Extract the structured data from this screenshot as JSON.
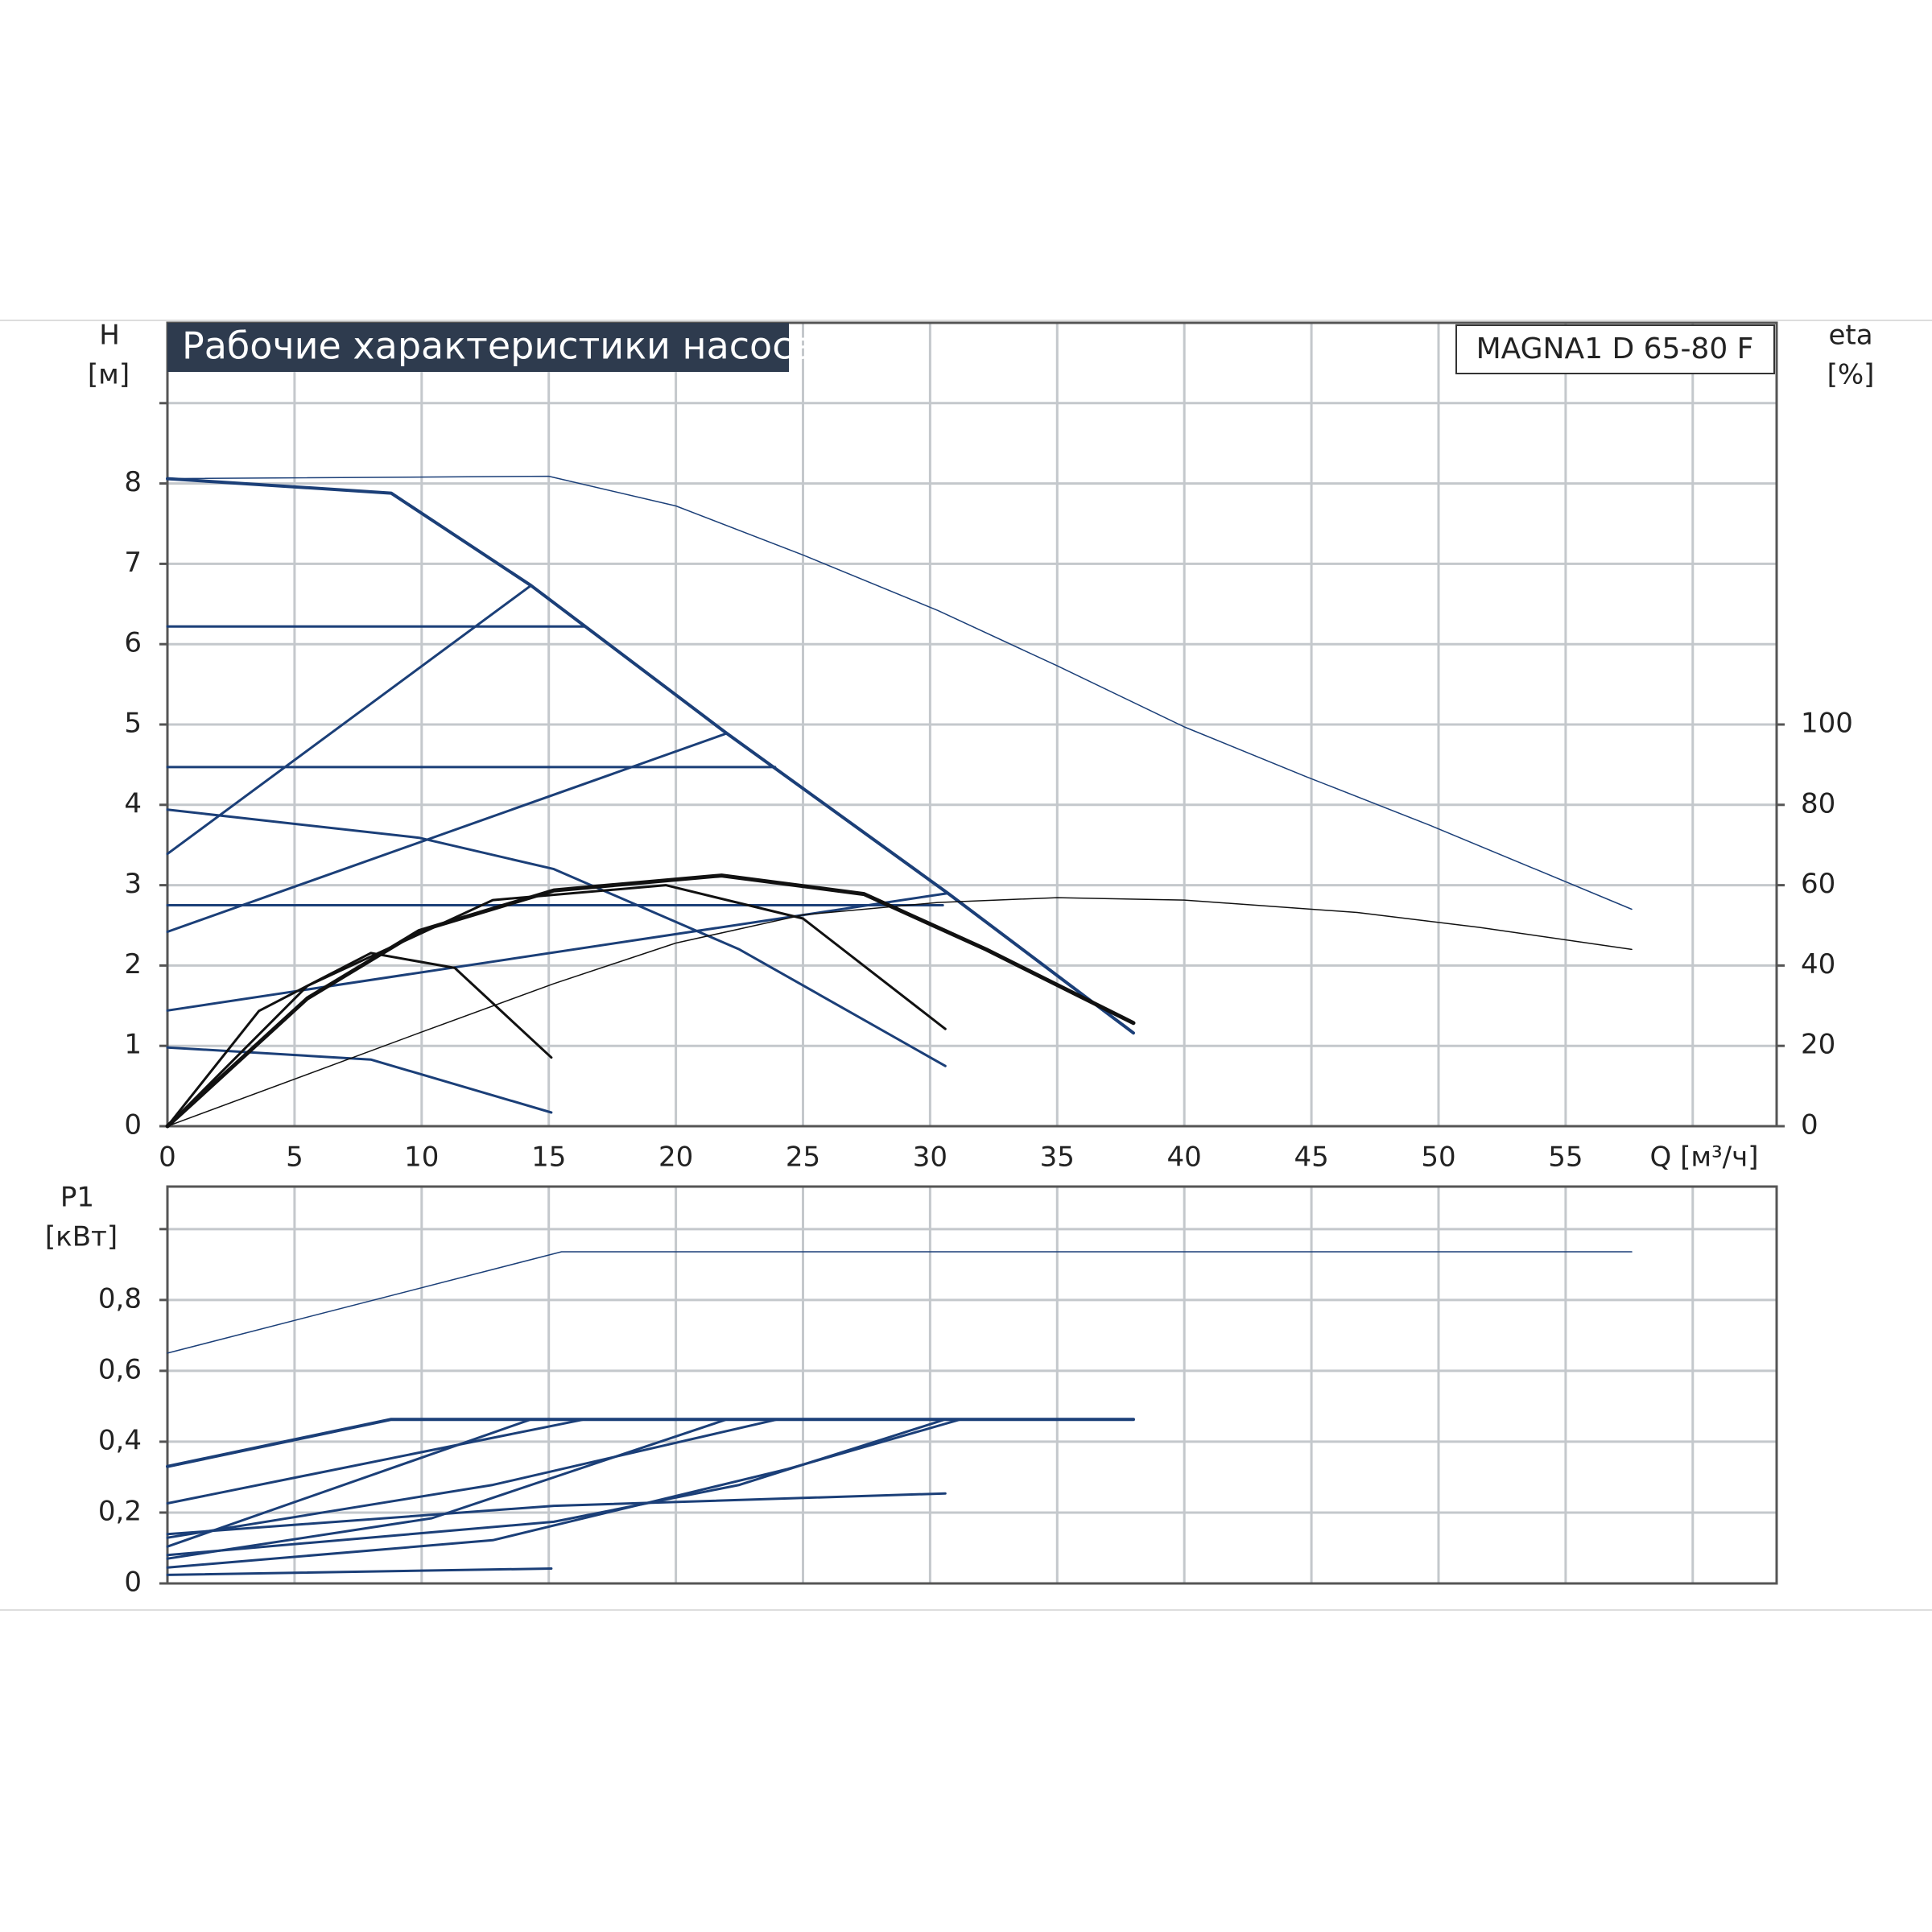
{
  "chart_data": [
    {
      "type": "line",
      "title": "Рабочие характеристики насоса",
      "model": "MAGNA1 D 65-80 F",
      "ylabel": "H",
      "yunit": "[м]",
      "y2label": "eta",
      "y2unit": "[%]",
      "xlabel": "Q [м³/ч]",
      "xlim": [
        0,
        63.3
      ],
      "xticks": [
        0,
        5,
        10,
        15,
        20,
        25,
        30,
        35,
        40,
        45,
        50,
        55,
        {
          "value": 60,
          "label": null
        }
      ],
      "ylim": [
        0,
        10
      ],
      "yticks": [
        0,
        1,
        2,
        3,
        4,
        5,
        6,
        7,
        8,
        {
          "value": 9,
          "label": null
        }
      ],
      "y2lim": [
        0,
        200
      ],
      "y2ticks": [
        0,
        20,
        40,
        60,
        80,
        100
      ],
      "grid": true,
      "series": [
        {
          "color": "#1b3f78",
          "width": 1.5,
          "x": [
            0,
            15,
            20,
            25,
            30.3,
            35,
            40,
            44.8,
            49.7,
            57.6
          ],
          "y": [
            8.06,
            8.09,
            7.72,
            7.11,
            6.42,
            5.73,
            4.97,
            4.35,
            3.74,
            2.7
          ]
        },
        {
          "color": "#1b3f78",
          "width": 4,
          "x": [
            0,
            8.8,
            14.3,
            22,
            30.7,
            38
          ],
          "y": [
            8.06,
            7.88,
            6.73,
            4.89,
            2.9,
            1.16
          ]
        },
        {
          "color": "#1b3f78",
          "width": 3,
          "x": [
            0,
            16.4
          ],
          "y": [
            6.22,
            6.22
          ]
        },
        {
          "color": "#1b3f78",
          "width": 3,
          "x": [
            0,
            23.9
          ],
          "y": [
            4.47,
            4.47
          ]
        },
        {
          "color": "#1b3f78",
          "width": 3,
          "x": [
            0,
            30.5
          ],
          "y": [
            2.75,
            2.75
          ]
        },
        {
          "color": "#1b3f78",
          "width": 3,
          "x": [
            0,
            14.3
          ],
          "y": [
            3.39,
            6.73
          ]
        },
        {
          "color": "#1b3f78",
          "width": 3,
          "x": [
            0,
            22
          ],
          "y": [
            2.42,
            4.89
          ]
        },
        {
          "color": "#1b3f78",
          "width": 3,
          "x": [
            0,
            30.7
          ],
          "y": [
            1.44,
            2.9
          ]
        },
        {
          "color": "#1b3f78",
          "width": 3,
          "x": [
            0,
            9.9,
            15.2,
            22.5,
            30.6
          ],
          "y": [
            3.94,
            3.59,
            3.2,
            2.2,
            0.75
          ]
        },
        {
          "color": "#1b3f78",
          "width": 3,
          "x": [
            0,
            8,
            15.1
          ],
          "y": [
            0.98,
            0.83,
            0.17
          ]
        },
        {
          "color": "#111111",
          "width": 1.5,
          "axis": "y2",
          "x": [
            0,
            9.9,
            15.2,
            20,
            25,
            30.3,
            35,
            40,
            46.8,
            51.6,
            57.6
          ],
          "y": [
            0,
            23.2,
            35.5,
            45.6,
            52.6,
            55.7,
            56.9,
            56.3,
            53.2,
            49.5,
            44
          ]
        },
        {
          "color": "#111111",
          "width": 5,
          "axis": "y2",
          "x": [
            0,
            5.5,
            9.9,
            15.2,
            21.8,
            27.4,
            32.2,
            38
          ],
          "y": [
            0,
            31.8,
            48.6,
            58.7,
            62.4,
            57.8,
            44,
            25.7
          ]
        },
        {
          "color": "#111111",
          "width": 3,
          "axis": "y2",
          "x": [
            0,
            3.6,
            8,
            11.3,
            15.1
          ],
          "y": [
            0,
            28.7,
            43.1,
            39.4,
            17.1
          ]
        },
        {
          "color": "#111111",
          "width": 3,
          "axis": "y2",
          "x": [
            0,
            5.5,
            12.8,
            19.6,
            25,
            30.6
          ],
          "y": [
            0,
            34.9,
            56.3,
            60,
            51.7,
            24.2
          ]
        }
      ]
    },
    {
      "type": "line",
      "ylabel": "P1",
      "yunit": "[кВт]",
      "sharex": true,
      "ylim": [
        0,
        1.12
      ],
      "yticks": [
        0,
        {
          "value": 0.2,
          "label": "0,2"
        },
        {
          "value": 0.4,
          "label": "0,4"
        },
        {
          "value": 0.6,
          "label": "0,6"
        },
        {
          "value": 0.8,
          "label": "0,8"
        },
        {
          "value": 1,
          "label": null
        }
      ],
      "grid": true,
      "series": [
        {
          "color": "#1b3f78",
          "width": 1.5,
          "x": [
            0,
            15.5,
            57.6
          ],
          "y": [
            0.65,
            0.936,
            0.936
          ]
        },
        {
          "color": "#1b3f78",
          "width": 4,
          "x": [
            0,
            8.8,
            38
          ],
          "y": [
            0.33,
            0.463,
            0.463
          ]
        },
        {
          "color": "#1b3f78",
          "width": 3,
          "x": [
            0,
            16.4
          ],
          "y": [
            0.226,
            0.463
          ]
        },
        {
          "color": "#1b3f78",
          "width": 3,
          "x": [
            0,
            14.3
          ],
          "y": [
            0.104,
            0.463
          ]
        },
        {
          "color": "#1b3f78",
          "width": 3,
          "x": [
            0,
            12.8,
            24
          ],
          "y": [
            0.129,
            0.278,
            0.463
          ]
        },
        {
          "color": "#1b3f78",
          "width": 3,
          "x": [
            0,
            10.4,
            22
          ],
          "y": [
            0.07,
            0.184,
            0.463
          ]
        },
        {
          "color": "#1b3f78",
          "width": 3,
          "x": [
            0,
            15.2,
            30.6
          ],
          "y": [
            0.139,
            0.219,
            0.254
          ]
        },
        {
          "color": "#1b3f78",
          "width": 3,
          "x": [
            0,
            12.8,
            24.4,
            31.2
          ],
          "y": [
            0.045,
            0.122,
            0.323,
            0.463
          ]
        },
        {
          "color": "#1b3f78",
          "width": 3,
          "x": [
            0,
            15.2,
            22.5,
            30.6
          ],
          "y": [
            0.08,
            0.174,
            0.278,
            0.463
          ]
        },
        {
          "color": "#1b3f78",
          "width": 3,
          "x": [
            0,
            15.1
          ],
          "y": [
            0.024,
            0.042
          ]
        }
      ]
    }
  ]
}
